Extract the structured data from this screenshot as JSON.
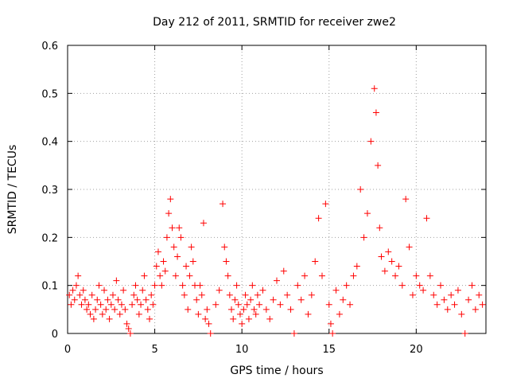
{
  "chart_data": {
    "type": "scatter",
    "title": "Day 212 of 2011, SRMTID for receiver zwe2",
    "xlabel": "GPS time / hours",
    "ylabel": "SRMTID / TECUs",
    "xlim": [
      0,
      24
    ],
    "ylim": [
      0,
      0.6
    ],
    "xticks": [
      0,
      5,
      10,
      15,
      20
    ],
    "yticks": [
      0,
      0.1,
      0.2,
      0.3,
      0.4,
      0.5,
      0.6
    ],
    "grid": true,
    "marker": "+",
    "color": "#ff0000",
    "series": [
      {
        "name": "SRMTID",
        "points": [
          [
            0.1,
            0.08
          ],
          [
            0.2,
            0.06
          ],
          [
            0.3,
            0.09
          ],
          [
            0.4,
            0.07
          ],
          [
            0.5,
            0.1
          ],
          [
            0.6,
            0.12
          ],
          [
            0.7,
            0.08
          ],
          [
            0.8,
            0.06
          ],
          [
            0.9,
            0.09
          ],
          [
            1.0,
            0.07
          ],
          [
            1.1,
            0.05
          ],
          [
            1.2,
            0.06
          ],
          [
            1.3,
            0.04
          ],
          [
            1.4,
            0.08
          ],
          [
            1.5,
            0.03
          ],
          [
            1.6,
            0.05
          ],
          [
            1.7,
            0.07
          ],
          [
            1.8,
            0.1
          ],
          [
            1.9,
            0.06
          ],
          [
            2.0,
            0.04
          ],
          [
            2.1,
            0.09
          ],
          [
            2.2,
            0.05
          ],
          [
            2.3,
            0.07
          ],
          [
            2.4,
            0.03
          ],
          [
            2.5,
            0.06
          ],
          [
            2.6,
            0.08
          ],
          [
            2.7,
            0.05
          ],
          [
            2.8,
            0.11
          ],
          [
            2.9,
            0.07
          ],
          [
            3.0,
            0.04
          ],
          [
            3.1,
            0.06
          ],
          [
            3.2,
            0.09
          ],
          [
            3.3,
            0.05
          ],
          [
            3.4,
            0.02
          ],
          [
            3.5,
            0.01
          ],
          [
            3.6,
            0.0
          ],
          [
            3.7,
            0.06
          ],
          [
            3.8,
            0.08
          ],
          [
            3.9,
            0.1
          ],
          [
            4.0,
            0.07
          ],
          [
            4.1,
            0.04
          ],
          [
            4.2,
            0.06
          ],
          [
            4.3,
            0.09
          ],
          [
            4.4,
            0.12
          ],
          [
            4.5,
            0.07
          ],
          [
            4.6,
            0.05
          ],
          [
            4.7,
            0.03
          ],
          [
            4.8,
            0.08
          ],
          [
            4.9,
            0.06
          ],
          [
            5.0,
            0.1
          ],
          [
            5.1,
            0.14
          ],
          [
            5.2,
            0.17
          ],
          [
            5.3,
            0.12
          ],
          [
            5.4,
            0.1
          ],
          [
            5.5,
            0.15
          ],
          [
            5.6,
            0.13
          ],
          [
            5.7,
            0.2
          ],
          [
            5.8,
            0.25
          ],
          [
            5.9,
            0.28
          ],
          [
            6.0,
            0.22
          ],
          [
            6.1,
            0.18
          ],
          [
            6.2,
            0.12
          ],
          [
            6.3,
            0.16
          ],
          [
            6.4,
            0.22
          ],
          [
            6.5,
            0.2
          ],
          [
            6.6,
            0.1
          ],
          [
            6.7,
            0.08
          ],
          [
            6.8,
            0.14
          ],
          [
            6.9,
            0.05
          ],
          [
            7.0,
            0.12
          ],
          [
            7.1,
            0.18
          ],
          [
            7.2,
            0.15
          ],
          [
            7.3,
            0.1
          ],
          [
            7.4,
            0.07
          ],
          [
            7.5,
            0.04
          ],
          [
            7.6,
            0.1
          ],
          [
            7.7,
            0.08
          ],
          [
            7.8,
            0.23
          ],
          [
            7.9,
            0.03
          ],
          [
            8.0,
            0.05
          ],
          [
            8.1,
            0.02
          ],
          [
            8.2,
            0.0
          ],
          [
            8.5,
            0.06
          ],
          [
            8.7,
            0.09
          ],
          [
            8.9,
            0.27
          ],
          [
            9.0,
            0.18
          ],
          [
            9.1,
            0.15
          ],
          [
            9.2,
            0.12
          ],
          [
            9.3,
            0.08
          ],
          [
            9.4,
            0.05
          ],
          [
            9.5,
            0.03
          ],
          [
            9.6,
            0.07
          ],
          [
            9.7,
            0.1
          ],
          [
            9.8,
            0.06
          ],
          [
            9.9,
            0.04
          ],
          [
            10.0,
            0.02
          ],
          [
            10.1,
            0.05
          ],
          [
            10.2,
            0.08
          ],
          [
            10.3,
            0.06
          ],
          [
            10.4,
            0.03
          ],
          [
            10.5,
            0.07
          ],
          [
            10.6,
            0.1
          ],
          [
            10.7,
            0.05
          ],
          [
            10.8,
            0.04
          ],
          [
            10.9,
            0.08
          ],
          [
            11.0,
            0.06
          ],
          [
            11.2,
            0.09
          ],
          [
            11.4,
            0.05
          ],
          [
            11.6,
            0.03
          ],
          [
            11.8,
            0.07
          ],
          [
            12.0,
            0.11
          ],
          [
            12.2,
            0.06
          ],
          [
            12.4,
            0.13
          ],
          [
            12.6,
            0.08
          ],
          [
            12.8,
            0.05
          ],
          [
            13.0,
            0.0
          ],
          [
            13.2,
            0.1
          ],
          [
            13.4,
            0.07
          ],
          [
            13.6,
            0.12
          ],
          [
            13.8,
            0.04
          ],
          [
            14.0,
            0.08
          ],
          [
            14.2,
            0.15
          ],
          [
            14.4,
            0.24
          ],
          [
            14.6,
            0.12
          ],
          [
            14.8,
            0.27
          ],
          [
            15.0,
            0.06
          ],
          [
            15.1,
            0.02
          ],
          [
            15.2,
            0.0
          ],
          [
            15.4,
            0.09
          ],
          [
            15.6,
            0.04
          ],
          [
            15.8,
            0.07
          ],
          [
            16.0,
            0.1
          ],
          [
            16.2,
            0.06
          ],
          [
            16.4,
            0.12
          ],
          [
            16.6,
            0.14
          ],
          [
            16.8,
            0.3
          ],
          [
            17.0,
            0.2
          ],
          [
            17.2,
            0.25
          ],
          [
            17.4,
            0.4
          ],
          [
            17.6,
            0.51
          ],
          [
            17.7,
            0.46
          ],
          [
            17.8,
            0.35
          ],
          [
            17.9,
            0.22
          ],
          [
            18.0,
            0.16
          ],
          [
            18.2,
            0.13
          ],
          [
            18.4,
            0.17
          ],
          [
            18.6,
            0.15
          ],
          [
            18.8,
            0.12
          ],
          [
            19.0,
            0.14
          ],
          [
            19.2,
            0.1
          ],
          [
            19.4,
            0.28
          ],
          [
            19.6,
            0.18
          ],
          [
            19.8,
            0.08
          ],
          [
            20.0,
            0.12
          ],
          [
            20.2,
            0.1
          ],
          [
            20.4,
            0.09
          ],
          [
            20.6,
            0.24
          ],
          [
            20.8,
            0.12
          ],
          [
            21.0,
            0.08
          ],
          [
            21.2,
            0.06
          ],
          [
            21.4,
            0.1
          ],
          [
            21.6,
            0.07
          ],
          [
            21.8,
            0.05
          ],
          [
            22.0,
            0.08
          ],
          [
            22.2,
            0.06
          ],
          [
            22.4,
            0.09
          ],
          [
            22.6,
            0.04
          ],
          [
            22.8,
            0.0
          ],
          [
            23.0,
            0.07
          ],
          [
            23.2,
            0.1
          ],
          [
            23.4,
            0.05
          ],
          [
            23.6,
            0.08
          ],
          [
            23.8,
            0.06
          ]
        ]
      }
    ]
  }
}
